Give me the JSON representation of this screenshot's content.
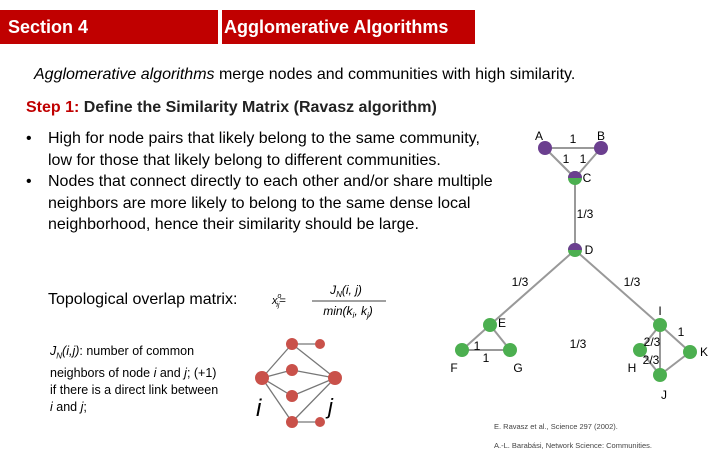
{
  "header": {
    "section": "Section 4",
    "title": "Agglomerative Algorithms"
  },
  "intro": {
    "emphasis": "Agglomerative algorithms",
    "rest": " merge nodes and communities with high similarity."
  },
  "step": {
    "label": "Step 1:",
    "text": " Define the Similarity Matrix (Ravasz algorithm)"
  },
  "bullets": [
    "High for node pairs that likely belong to the same community, low for those that likely belong to different communities.",
    "Nodes that connect directly to each other and/or share multiple neighbors are more likely to belong to the same dense local neighborhood, hence their similarity should be large."
  ],
  "overlap": {
    "label": "Topological overlap matrix:",
    "lhs": "x",
    "lhs_sup": "o",
    "lhs_sub": "ij",
    "num": "J",
    "num_sub": "N",
    "num_args": "(i, j)",
    "den": "min(k",
    "den_sub1": "i",
    "den_mid": ", k",
    "den_sub2": "j",
    "den_end": ")"
  },
  "note": {
    "j": "J",
    "j_sub": "N",
    "args": "(i,j)",
    "text1": ": number of common neighbors of node ",
    "i1": "i",
    "and1": " and ",
    "j1": "j",
    "text2": "; (+1) if there is a direct link between ",
    "i2": "i",
    "and2": " and ",
    "j2": "j",
    "end": ";"
  },
  "mini": {
    "i": "i",
    "j": "j"
  },
  "graph": {
    "nodes": [
      "A",
      "B",
      "C",
      "D",
      "E",
      "F",
      "G",
      "I",
      "H",
      "K",
      "J"
    ],
    "edge_labels": [
      "1",
      "1",
      "1",
      "1/3",
      "1/3",
      "1/3",
      "1",
      "1",
      "1/3",
      "2/3",
      "1",
      "2/3"
    ]
  },
  "citations": [
    "E. Ravasz et al., Science 297 (2002).",
    "A.-L. Barabási, Network Science: Communities."
  ]
}
